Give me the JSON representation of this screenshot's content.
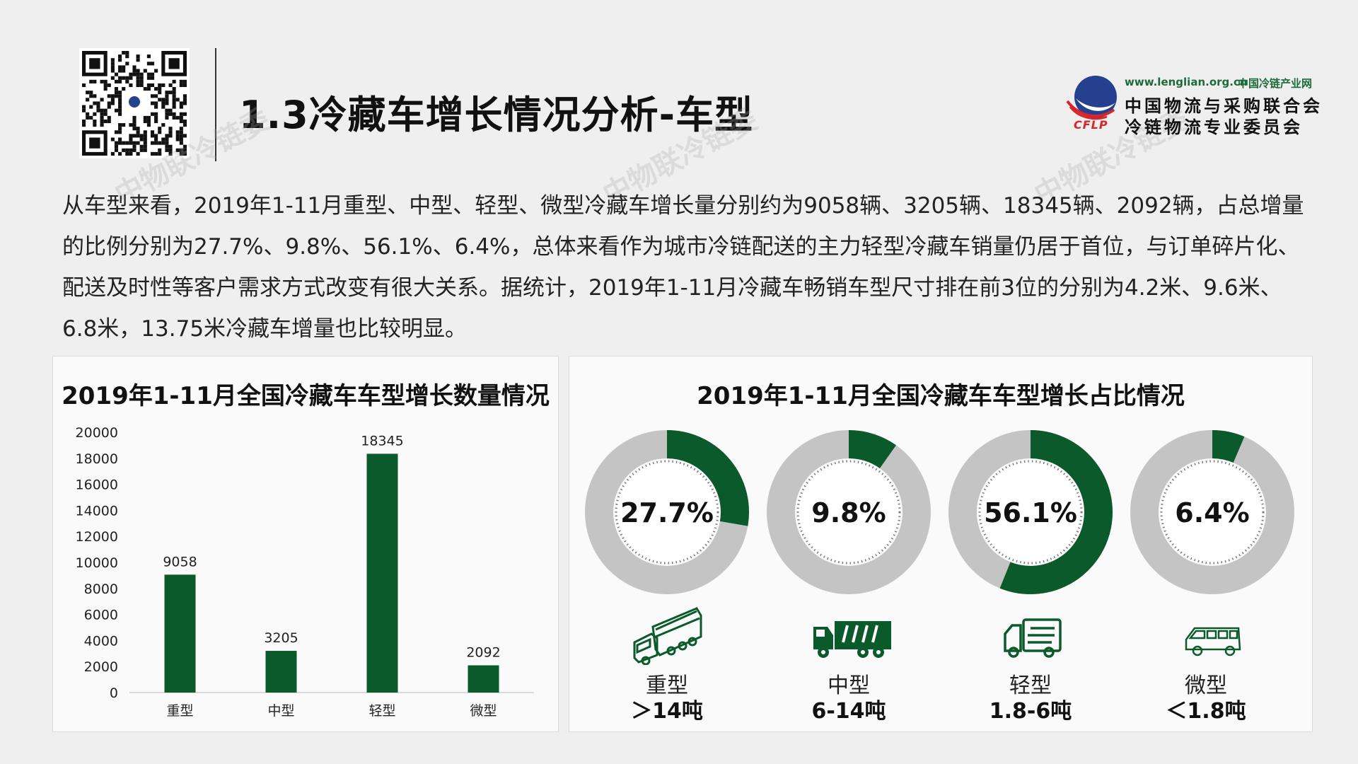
{
  "header": {
    "title": "1.3冷藏车增长情况分析-车型",
    "logo_url": "www.lenglian.org.cn",
    "logo_chain": "中国冷链产业网",
    "logo_line1": "中国物流与采购联合会",
    "logo_line2": "冷链物流专业委员会",
    "logo_abbr": "CFLP",
    "watermark": "中物联冷链委"
  },
  "paragraph": "从车型来看，2019年1-11月重型、中型、轻型、微型冷藏车增长量分别约为9058辆、3205辆、18345辆、2092辆，占总增量的比例分别为27.7%、9.8%、56.1%、6.4%，总体来看作为城市冷链配送的主力轻型冷藏车销量仍居于首位，与订单碎片化、配送及时性等客户需求方式改变有很大关系。据统计，2019年1-11月冷藏车畅销车型尺寸排在前3位的分别为4.2米、9.6米、6.8米，13.75米冷藏车增量也比较明显。",
  "colors": {
    "bar": "#0b5a2c",
    "ring_bg": "#c4c4c4",
    "ring_fg": "#0b5a2c"
  },
  "chart_data": [
    {
      "type": "bar",
      "title": "2019年1-11月全国冷藏车车型增长数量情况",
      "categories": [
        "重型",
        "中型",
        "轻型",
        "微型"
      ],
      "values": [
        9058,
        3205,
        18345,
        2092
      ],
      "ylim": [
        0,
        20000
      ],
      "yticks": [
        "20000",
        "18000",
        "16000",
        "14000",
        "12000",
        "10000",
        "8000",
        "6000",
        "4000",
        "2000",
        "0"
      ],
      "grid": false
    },
    {
      "type": "pie",
      "title": "2019年1-11月全国冷藏车车型增长占比情况",
      "items": [
        {
          "label": "27.7%",
          "value": 27.7,
          "name": "重型",
          "sub": "＞14吨",
          "icon": "heavy-truck-icon"
        },
        {
          "label": "9.8%",
          "value": 9.8,
          "name": "中型",
          "sub": "6-14吨",
          "icon": "medium-truck-icon"
        },
        {
          "label": "56.1%",
          "value": 56.1,
          "name": "轻型",
          "sub": "1.8-6吨",
          "icon": "light-truck-icon"
        },
        {
          "label": "6.4%",
          "value": 6.4,
          "name": "微型",
          "sub": "＜1.8吨",
          "icon": "van-icon"
        }
      ]
    }
  ]
}
